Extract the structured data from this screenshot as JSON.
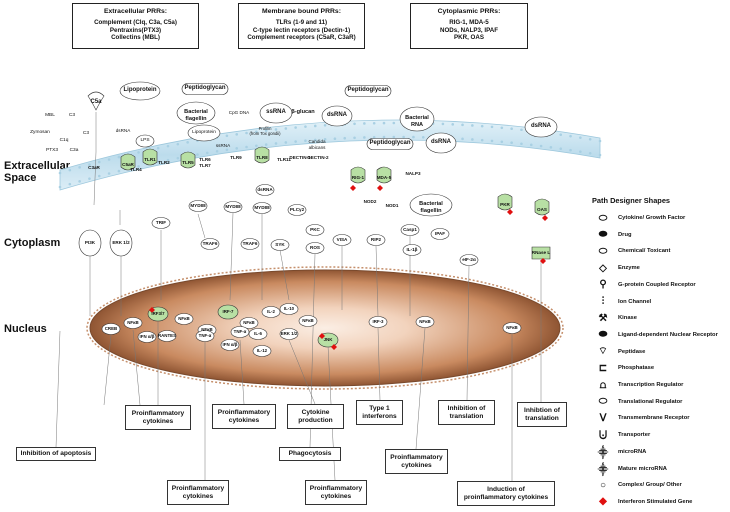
{
  "headers": [
    {
      "title": "Extracellular PRRs:",
      "lines": [
        "Complement (Clq, C3a, C5a)",
        "Pentraxins(PTX3)",
        "Collectins (MBL)"
      ]
    },
    {
      "title": "Membrane bound PRRs:",
      "lines": [
        "TLRs (1-9 and 11)",
        "C-type lectin receptors (Dectin-1)",
        "Complement receptors (C5aR, C3aR)"
      ]
    },
    {
      "title": "Cytoplasmic PRRs:",
      "lines": [
        "RIG-1, MDA-5",
        "NODs, NALP3, IPAF",
        "PKR, OAS"
      ]
    }
  ],
  "regions": {
    "extracellular": "Extracellular\nSpace",
    "cytoplasm": "Cytoplasm",
    "nucleus": "Nucleus"
  },
  "ligands": [
    "C5a",
    "Lipoprotein",
    "Peptidoglycan",
    "Bacterial flagellin",
    "CpG DNA",
    "ssRNA",
    "dsRNA",
    "Peptidoglycan",
    "Peptidoglycan",
    "Bacterial RNA",
    "dsRNA",
    "Bacterial flagellin",
    "dsRNA",
    "LPS",
    "Lipoprotein",
    "β-glucan",
    "Candida albicans",
    "Profilin (from Tox gondii)"
  ],
  "complement_labels": [
    "MBL",
    "C3",
    "Zymosan",
    "C1q",
    "PTX3",
    "C3a",
    "C3"
  ],
  "receptors": [
    "C3aR",
    "C5aR",
    "TLR1",
    "TLR2",
    "TLR4",
    "TLR5",
    "TLR6",
    "TLR7",
    "TLR8",
    "TLR9",
    "TLR11",
    "DECTIN-1",
    "DECTIN-2",
    "RIG-1",
    "MDA-5",
    "NOD2",
    "NOD1",
    "NALP3",
    "PKR",
    "OAS"
  ],
  "cyto_nodes": [
    "PI3K",
    "ERK 1/2",
    "TRIF",
    "MYD88",
    "TRAF6",
    "MYD88",
    "TRAF6",
    "MYD88",
    "SYK",
    "PLCγ2",
    "PKC",
    "ROS",
    "VISA",
    "RIP2",
    "Casp1",
    "IL-1β",
    "IPAF",
    "eIF-2α",
    "RNase L",
    "dsRNA"
  ],
  "nuc_nodes": [
    "CREB",
    "NFκB",
    "IRF3/7",
    "IFN α/β",
    "RANTES",
    "NFκB",
    "NFκB",
    "TNF-α",
    "IRF-7",
    "IFN α/β",
    "NFκB",
    "TNF-α",
    "IL-6",
    "IL-12",
    "IL-2",
    "IL-10",
    "ERK 1/2",
    "NFκB",
    "JNK",
    "IRF-3",
    "NFκB",
    "NFκB"
  ],
  "outcomes": [
    "Proinflammatory\ncytokines",
    "Inhibition of apoptosis",
    "Proinflammatory\ncytokines",
    "Proinflammatory\ncytokines",
    "Cytokine\nproduction",
    "Phagocytosis",
    "Type 1\ninterferons",
    "Proinflammatory\ncytokines",
    "Proinflammatory\ncytokines",
    "Inhibition of\ntranslation",
    "Inhibtion of\ntranslation",
    "Induction of\nproinflammatory cytokines"
  ],
  "legend": {
    "title": "Path Designer Shapes",
    "items": [
      "Cytokine/ Growth Factor",
      "Drug",
      "Chemical/ Toxicant",
      "Enzyme",
      "G-protein Coupled Receptor",
      "Ion Channel",
      "Kinase",
      "Ligand-dependent Nuclear Receptor",
      "Peptidase",
      "Phosphatase",
      "Transcription Regulator",
      "Translational Regulator",
      "Transmembrane Receptor",
      "Transporter",
      "microRNA",
      "Mature microRNA",
      "Complex/ Group/ Other",
      "Interferon Stimulated Gene"
    ]
  },
  "colors": {
    "membrane": "#cfe6f2",
    "nucleus_light": "#f7e6da",
    "nucleus_dark": "#b9764d",
    "receptor_green": "#b8e0a4",
    "isg_red": "#e01010"
  }
}
